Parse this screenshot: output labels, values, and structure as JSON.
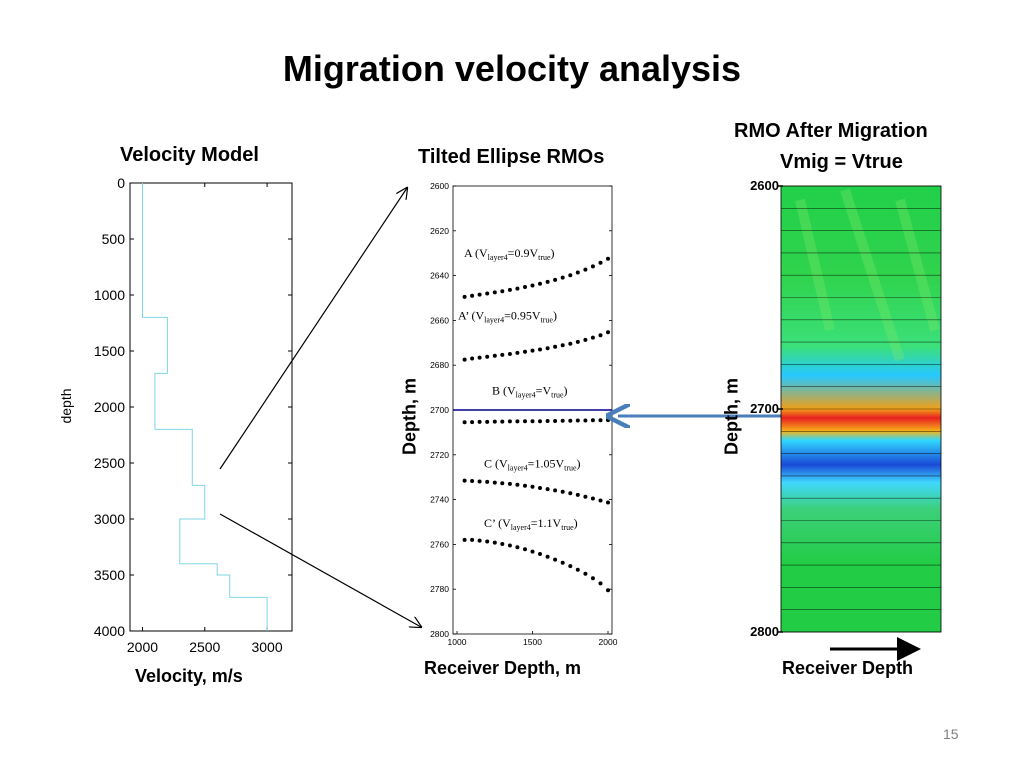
{
  "slide": {
    "title": "Migration velocity analysis",
    "page_number": "15"
  },
  "colors": {
    "model_line": "#7fd6e6",
    "dots": "#000000",
    "marker_line": "#00008b",
    "arrow": "#4a7ebb"
  },
  "chart_data": [
    {
      "type": "line",
      "title": "Velocity Model",
      "xlabel": "Velocity, m/s",
      "ylabel": "depth",
      "xlim": [
        1900,
        3200
      ],
      "ylim": [
        4000,
        0
      ],
      "x_ticks": [
        "2000",
        "2500",
        "3000"
      ],
      "y_ticks": [
        "0",
        "500",
        "1000",
        "1500",
        "2000",
        "2500",
        "3000",
        "3500",
        "4000"
      ],
      "series": [
        {
          "x": [
            2000,
            2000,
            2200,
            2200,
            2100,
            2100,
            2400,
            2400,
            2500,
            2500,
            2300,
            2300,
            2600,
            2600,
            2700,
            2700,
            3000,
            3000
          ],
          "y": [
            0,
            1200,
            1200,
            1700,
            1700,
            2200,
            2200,
            2700,
            2700,
            3000,
            3000,
            3400,
            3400,
            3500,
            3500,
            3700,
            3700,
            4000
          ]
        }
      ]
    },
    {
      "type": "scatter",
      "title": "Tilted Ellipse RMOs",
      "xlabel": "Receiver Depth, m",
      "ylabel": "Depth, m",
      "xlim": [
        1000,
        2000
      ],
      "ylim": [
        2800,
        2600
      ],
      "x_ticks": [
        "1000",
        "1500",
        "2000"
      ],
      "y_ticks": [
        "2600",
        "2620",
        "2640",
        "2660",
        "2680",
        "2700",
        "2720",
        "2740",
        "2760",
        "2780",
        "2800"
      ],
      "marker_depth": 2700,
      "x": [
        1050,
        1100,
        1150,
        1200,
        1250,
        1300,
        1350,
        1400,
        1450,
        1500,
        1550,
        1600,
        1650,
        1700,
        1750,
        1800,
        1850,
        1900,
        1950,
        2000
      ],
      "series": [
        {
          "id": "A",
          "label_main": "A (V",
          "label_sub1": "layer4",
          "label_mid": "=0.9V",
          "label_sub2": "true",
          "label_end": ")",
          "y": [
            2649.5,
            2649,
            2648.5,
            2648,
            2647.5,
            2647,
            2646.4,
            2645.8,
            2645.1,
            2644.4,
            2643.6,
            2642.8,
            2641.9,
            2640.9,
            2639.8,
            2638.6,
            2637.3,
            2635.9,
            2634.3,
            2632.5
          ]
        },
        {
          "id": "A'",
          "label_main": "A’ (V",
          "label_sub1": "layer4",
          "label_mid": "=0.95V",
          "label_sub2": "true",
          "label_end": ")",
          "y": [
            2677.5,
            2677,
            2676.6,
            2676.2,
            2675.8,
            2675.4,
            2675,
            2674.5,
            2674,
            2673.5,
            2673,
            2672.4,
            2671.8,
            2671.1,
            2670.4,
            2669.6,
            2668.7,
            2667.7,
            2666.6,
            2665.3
          ]
        },
        {
          "id": "B",
          "label_main": "B (V",
          "label_sub1": "layer4",
          "label_mid": "=V",
          "label_sub2": "true",
          "label_end": ")",
          "y": [
            2705.5,
            2705.4,
            2705.3,
            2705.3,
            2705.2,
            2705.2,
            2705.1,
            2705.1,
            2705,
            2705,
            2705,
            2704.9,
            2704.9,
            2704.8,
            2704.8,
            2704.7,
            2704.7,
            2704.6,
            2704.6,
            2704.5
          ]
        },
        {
          "id": "C",
          "label_main": "C (V",
          "label_sub1": "layer4",
          "label_mid": "=1.05V",
          "label_sub2": "true",
          "label_end": ")",
          "y": [
            2731.5,
            2731.7,
            2731.9,
            2732.1,
            2732.4,
            2732.7,
            2733,
            2733.4,
            2733.8,
            2734.3,
            2734.8,
            2735.3,
            2735.9,
            2736.5,
            2737.2,
            2737.9,
            2738.7,
            2739.5,
            2740.4,
            2741.3
          ]
        },
        {
          "id": "C'",
          "label_main": "C’ (V",
          "label_sub1": "layer4",
          "label_mid": "=1.1V",
          "label_sub2": "true",
          "label_end": ")",
          "y": [
            2758,
            2758,
            2758.3,
            2758.7,
            2759.2,
            2759.8,
            2760.5,
            2761.3,
            2762.2,
            2763.2,
            2764.3,
            2765.5,
            2766.8,
            2768.2,
            2769.7,
            2771.3,
            2773.1,
            2775.1,
            2777.4,
            2780.5
          ]
        }
      ]
    },
    {
      "type": "heatmap",
      "title": "RMO After Migration",
      "subtitle": "Vmig = Vtrue",
      "xlabel": "Receiver Depth",
      "ylabel": "Depth, m",
      "ylim": [
        2800,
        2600
      ],
      "y_ticks": [
        "2600",
        "2700",
        "2800"
      ],
      "bands": [
        {
          "depth": 2600,
          "color": "#22d04a"
        },
        {
          "depth": 2640,
          "color": "#30d34c"
        },
        {
          "depth": 2672,
          "color": "#3be07a"
        },
        {
          "depth": 2685,
          "color": "#26c8ff"
        },
        {
          "depth": 2700,
          "color": "#f0a018"
        },
        {
          "depth": 2704,
          "color": "#e82020"
        },
        {
          "depth": 2710,
          "color": "#f7b518"
        },
        {
          "depth": 2714,
          "color": "#30d8ff"
        },
        {
          "depth": 2725,
          "color": "#1a4ad8"
        },
        {
          "depth": 2733,
          "color": "#40d8ff"
        },
        {
          "depth": 2745,
          "color": "#3cd07a"
        },
        {
          "depth": 2770,
          "color": "#22cc44"
        },
        {
          "depth": 2800,
          "color": "#22cc44"
        }
      ]
    }
  ]
}
